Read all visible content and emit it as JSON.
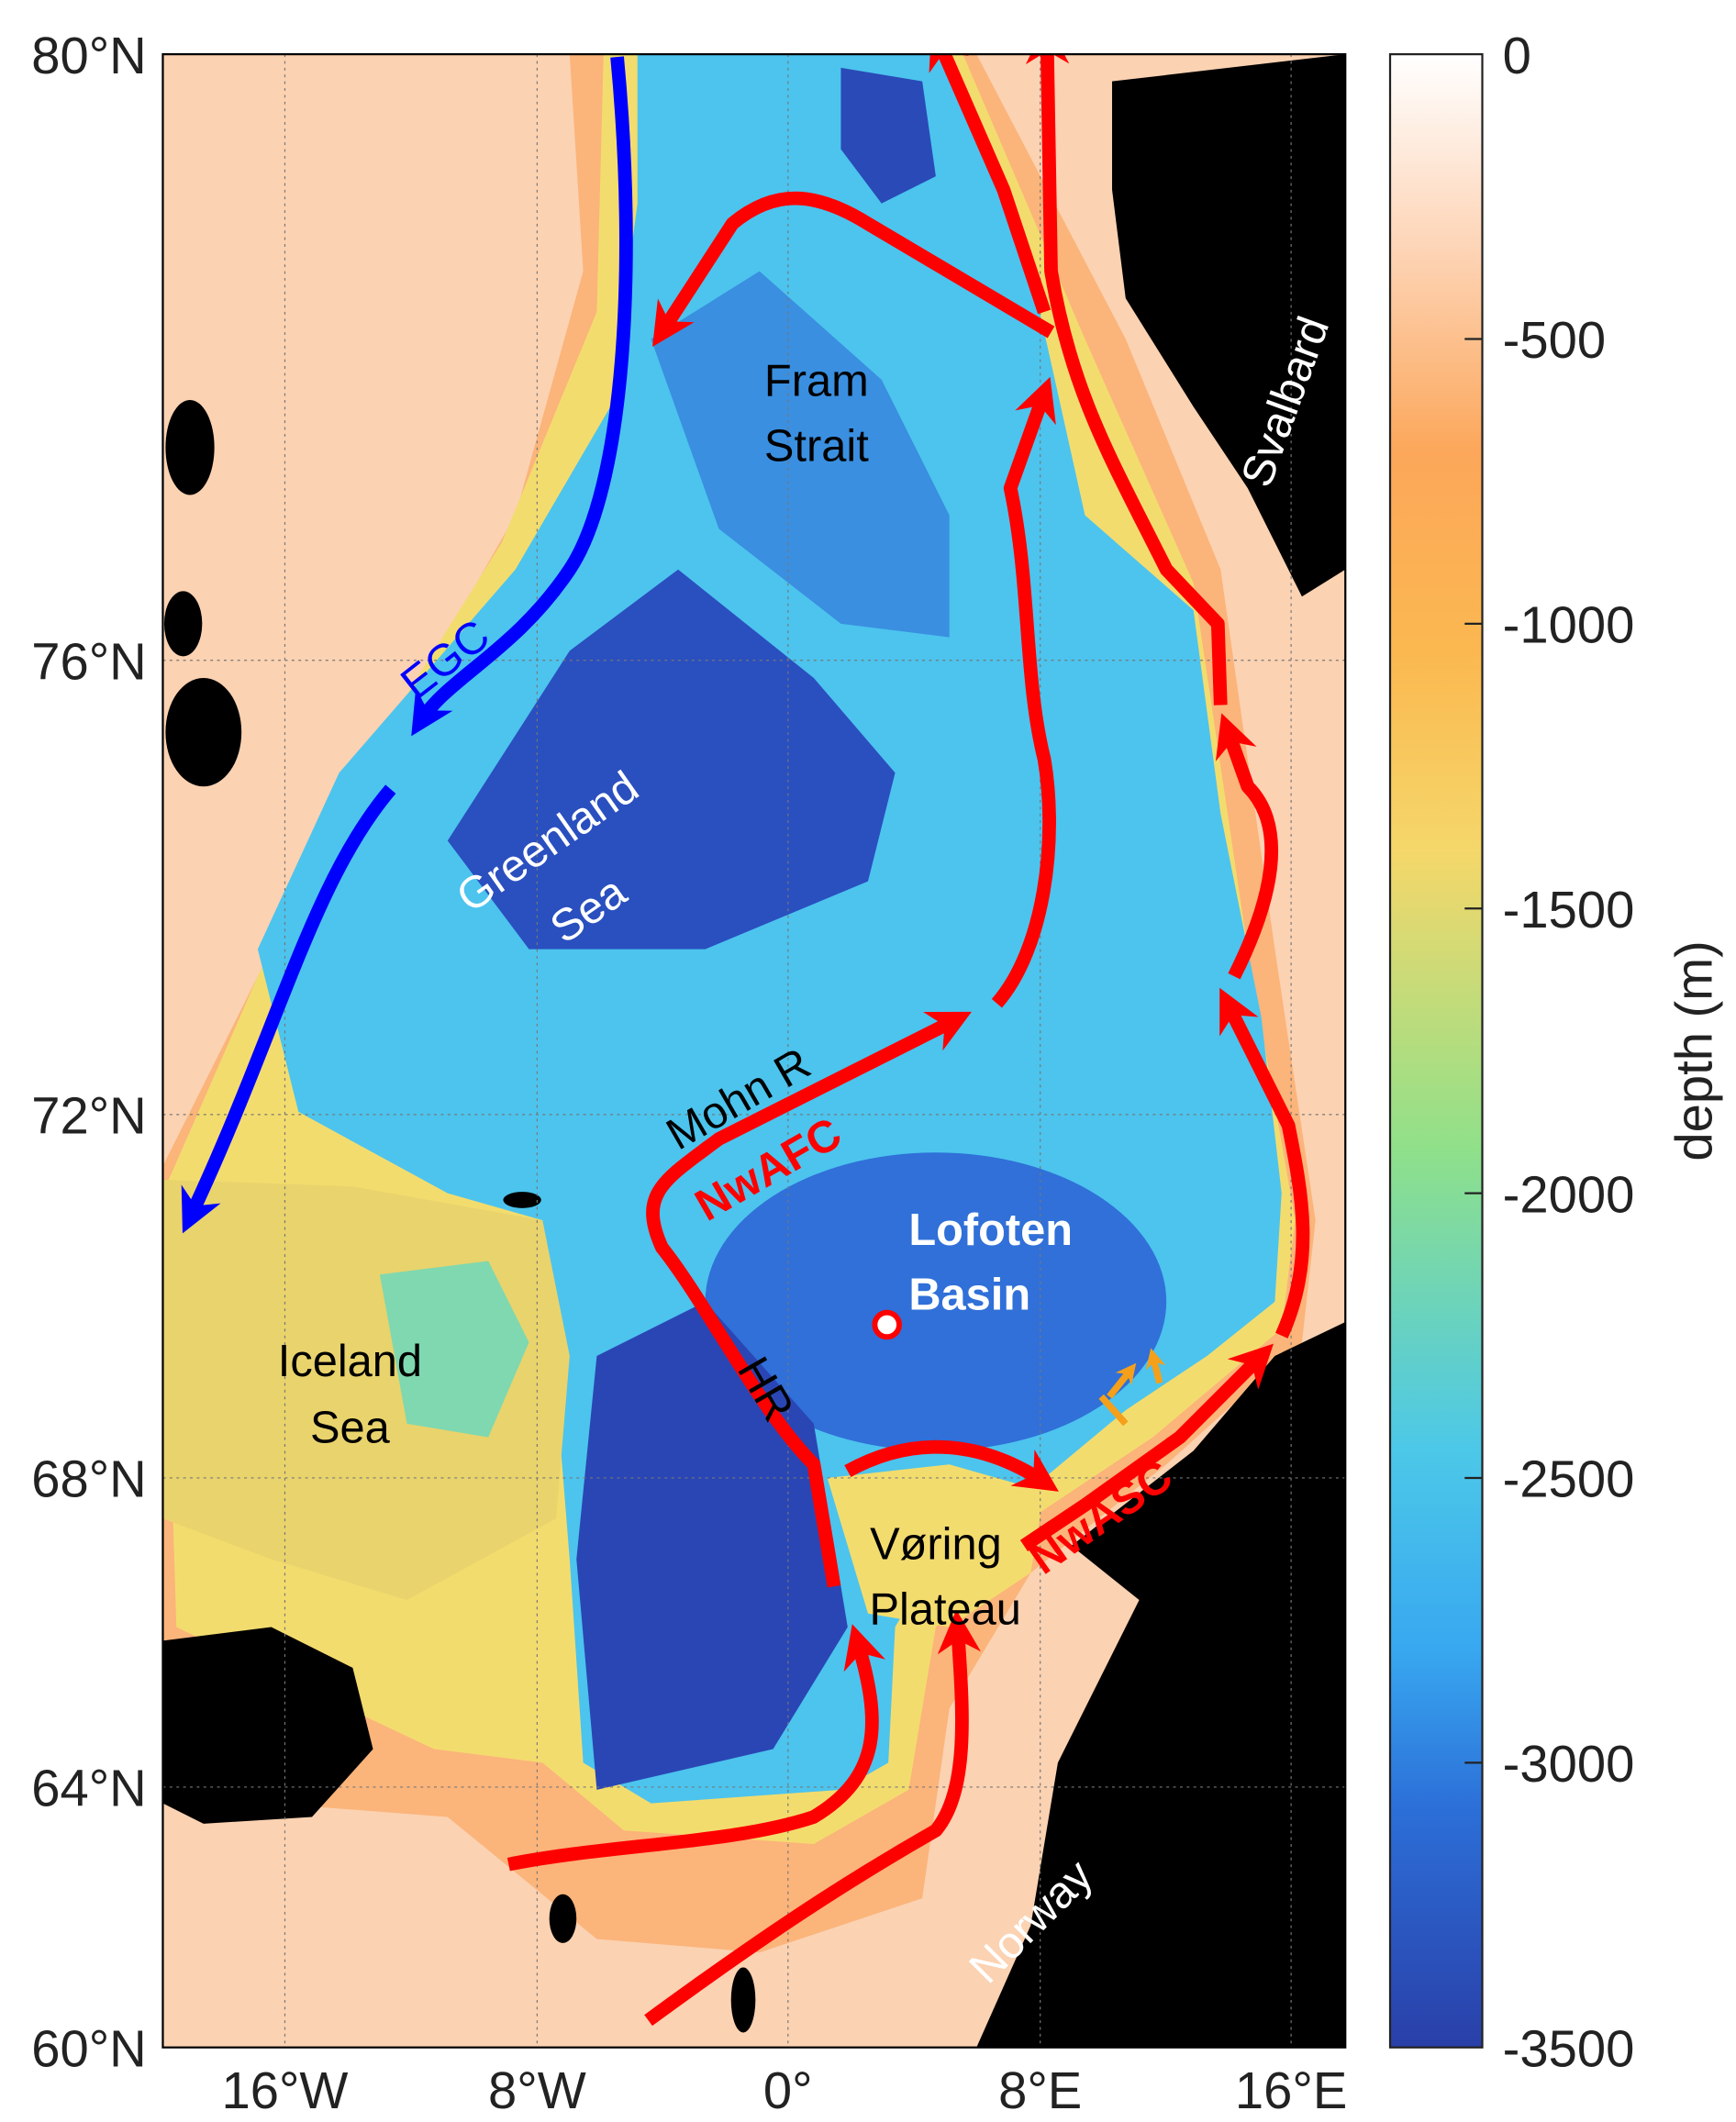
{
  "map": {
    "lat_ticks": [
      "80°N",
      "76°N",
      "72°N",
      "68°N",
      "64°N",
      "60°N"
    ],
    "lon_ticks": [
      "16°W",
      "8°W",
      "0°",
      "8°E",
      "16°E"
    ],
    "labels": {
      "fram": [
        "Fram",
        "Strait"
      ],
      "greenland": [
        "Greenland",
        "Sea"
      ],
      "egc": "EGC",
      "mohn": "Mohn R",
      "nwafc": "NwAFC",
      "lofoten": [
        "Lofoten",
        "Basin"
      ],
      "iceland": [
        "Iceland",
        "Sea"
      ],
      "hr": "HR",
      "voring": [
        "Vøring",
        "Plateau"
      ],
      "nwasc": "NwASC",
      "norway": "Norway",
      "svalbard": "Svalbard"
    },
    "colors": {
      "atlantic_current": "#ff0000",
      "polar_current": "#0000ff",
      "land": "#000000",
      "site_marker": "#ff0000",
      "minor_flow": "#f5a01a"
    }
  },
  "colorbar": {
    "label": "depth (m)",
    "ticks": [
      "0",
      "-500",
      "-1000",
      "-1500",
      "-2000",
      "-2500",
      "-3000",
      "-3500"
    ],
    "range": [
      0,
      -3500
    ],
    "colormap": [
      "#ffffff",
      "#fdd3b4",
      "#fca75a",
      "#fbb850",
      "#f5d76a",
      "#8fe08a",
      "#4cc8e8",
      "#38a8f0",
      "#2c6fd8",
      "#2a3fa8"
    ]
  }
}
